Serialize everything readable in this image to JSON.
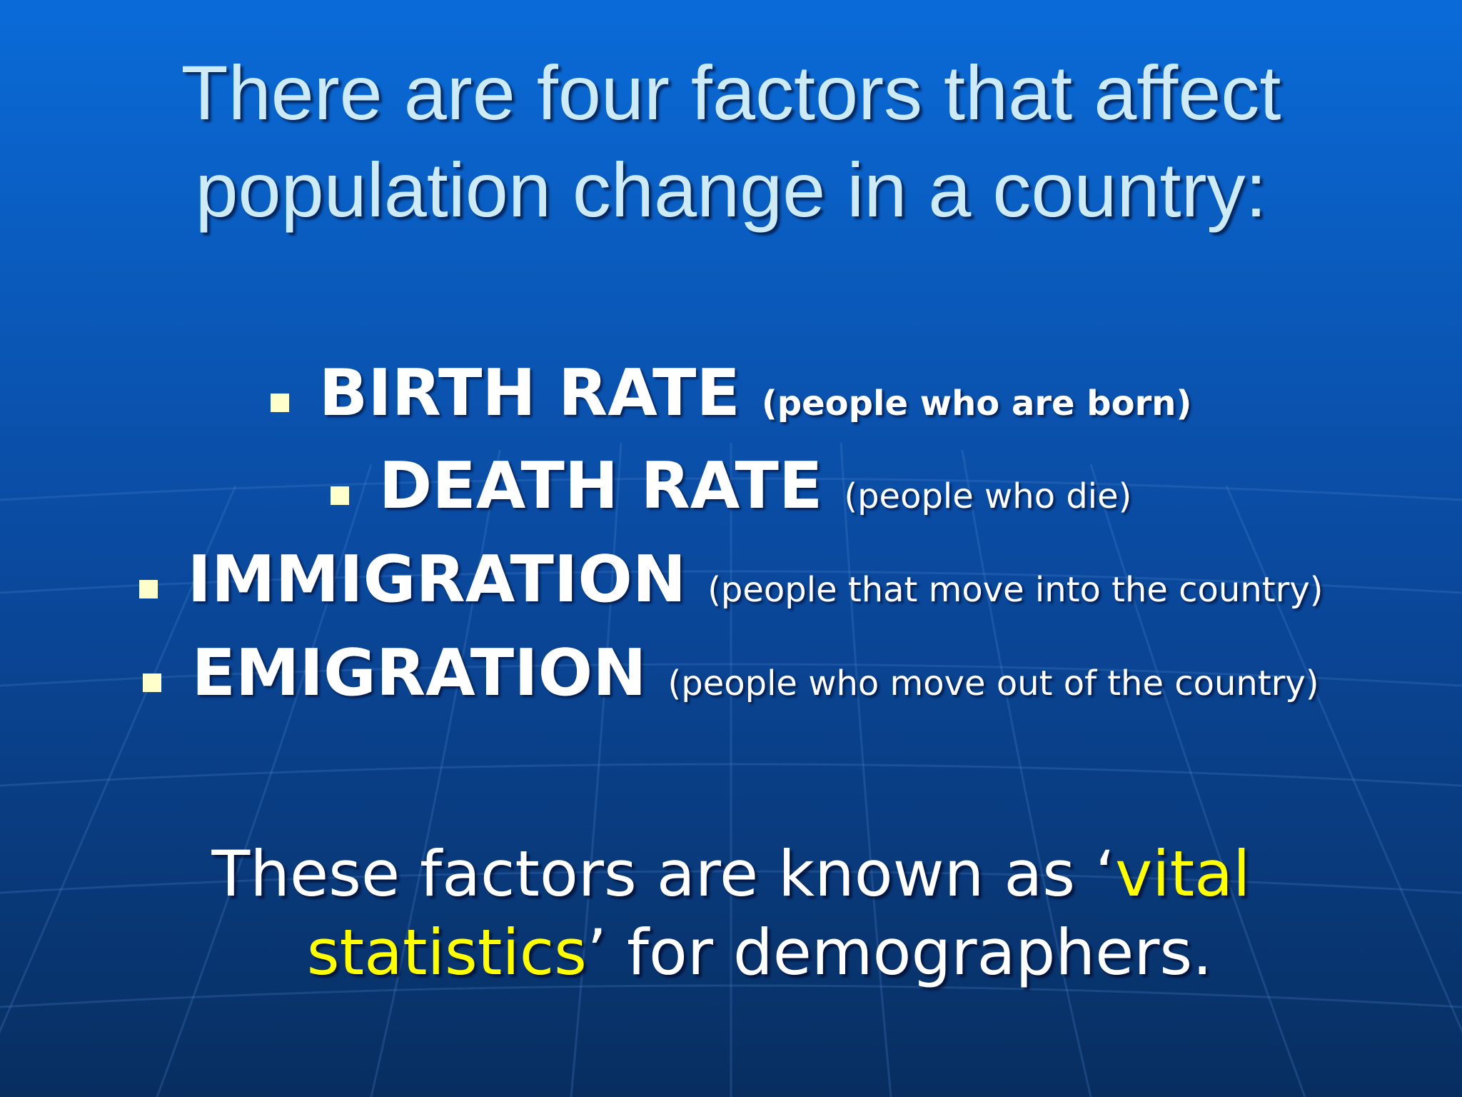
{
  "slide": {
    "title_lines": [
      "There are four factors that affect",
      "population change in a country:"
    ],
    "bullets": [
      {
        "term": "BIRTH RATE",
        "note": "(people who are born)"
      },
      {
        "term": "DEATH RATE",
        "note": "(people who die)"
      },
      {
        "term": "IMMIGRATION",
        "note": "(people that move into the country)"
      },
      {
        "term": "EMIGRATION",
        "note": "(people who move out of the country)"
      }
    ],
    "footer_lines": [
      [
        "These factors are known as ‘",
        "vital"
      ],
      [
        "statistics",
        "’ for demographers."
      ]
    ]
  }
}
